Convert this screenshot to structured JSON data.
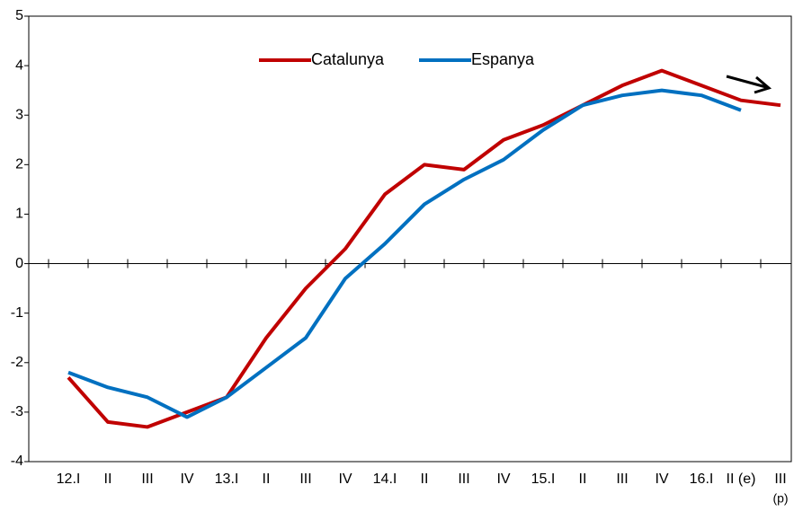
{
  "chart_data": {
    "type": "line",
    "categories": [
      "12.I",
      "II",
      "III",
      "IV",
      "13.I",
      "II",
      "III",
      "IV",
      "14.I",
      "II",
      "III",
      "IV",
      "15.I",
      "II",
      "III",
      "IV",
      "16.I",
      "II (e)",
      "III"
    ],
    "x_note": "(p)",
    "series": [
      {
        "name": "Catalunya",
        "color": "#c00000",
        "values": [
          -2.3,
          -3.2,
          -3.3,
          -3.0,
          -2.7,
          -1.5,
          -0.5,
          0.3,
          1.4,
          2.0,
          1.9,
          2.5,
          2.8,
          3.2,
          3.6,
          3.9,
          3.6,
          3.3,
          3.2
        ]
      },
      {
        "name": "Espanya",
        "color": "#0070c0",
        "values": [
          -2.2,
          -2.5,
          -2.7,
          -3.1,
          -2.7,
          -2.1,
          -1.5,
          -0.3,
          0.4,
          1.2,
          1.7,
          2.1,
          2.7,
          3.2,
          3.4,
          3.5,
          3.4,
          3.1,
          null
        ]
      }
    ],
    "ylim": [
      -4,
      5
    ],
    "yticks": [
      -4,
      -3,
      -2,
      -1,
      0,
      1,
      2,
      3,
      4,
      5
    ],
    "grid": false
  }
}
